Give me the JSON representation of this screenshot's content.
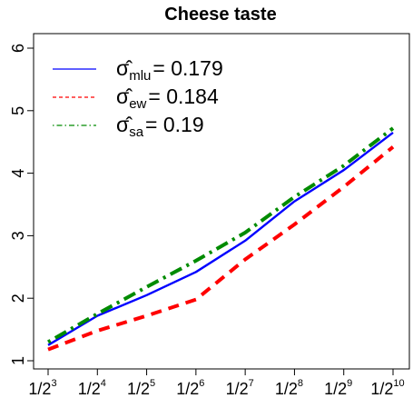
{
  "chart_data": {
    "type": "line",
    "title": "Cheese taste",
    "xlabel": "",
    "ylabel": "",
    "x_ticks": [
      {
        "base": "1/2",
        "exp": "3"
      },
      {
        "base": "1/2",
        "exp": "4"
      },
      {
        "base": "1/2",
        "exp": "5"
      },
      {
        "base": "1/2",
        "exp": "6"
      },
      {
        "base": "1/2",
        "exp": "7"
      },
      {
        "base": "1/2",
        "exp": "8"
      },
      {
        "base": "1/2",
        "exp": "9"
      },
      {
        "base": "1/2",
        "exp": "10"
      }
    ],
    "x": [
      3,
      4,
      5,
      6,
      7,
      8,
      9,
      10
    ],
    "y_ticks": [
      "1",
      "2",
      "3",
      "4",
      "5",
      "6"
    ],
    "ylim": [
      1,
      6
    ],
    "grid": false,
    "legend_position": "top-left",
    "series": [
      {
        "name": "mlu",
        "legend_symbol": "σ̂",
        "legend_sub": "mlu",
        "legend_value": "= 0.179",
        "color": "#0000ff",
        "style": "solid",
        "values": [
          1.25,
          1.72,
          2.05,
          2.42,
          2.92,
          3.55,
          4.05,
          4.65
        ]
      },
      {
        "name": "ew",
        "legend_symbol": "σ̂",
        "legend_sub": "ew",
        "legend_value": "= 0.184",
        "color": "#ff0000",
        "style": "dashed",
        "values": [
          1.18,
          1.48,
          1.72,
          1.98,
          2.62,
          3.18,
          3.78,
          4.42
        ]
      },
      {
        "name": "sa",
        "legend_symbol": "σ̂",
        "legend_sub": "sa",
        "legend_value": "= 0.19",
        "color": "#008b00",
        "style": "dotdash",
        "values": [
          1.3,
          1.75,
          2.18,
          2.6,
          3.05,
          3.62,
          4.12,
          4.72
        ]
      }
    ]
  }
}
